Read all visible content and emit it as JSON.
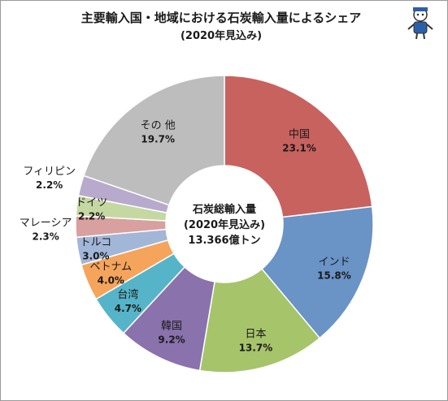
{
  "chart_data": {
    "type": "pie",
    "title": "主要輸入国・地域における石炭輸入量によるシェア",
    "subtitle": "(2020年見込み)",
    "center_label": [
      "石炭総輸入量",
      "(2020年見込み)",
      "13.366億トン"
    ],
    "categories": [
      "中国",
      "インド",
      "日本",
      "韓国",
      "台湾",
      "ベトナム",
      "トルコ",
      "マレーシア",
      "ドイツ",
      "フィリピン",
      "その 他"
    ],
    "values": [
      23.1,
      15.8,
      13.7,
      9.2,
      4.7,
      4.0,
      3.0,
      2.3,
      2.2,
      2.2,
      19.7
    ],
    "value_labels": [
      "23.1%",
      "15.8%",
      "13.7%",
      "9.2%",
      "4.7%",
      "4.0%",
      "3.0%",
      "2.3%",
      "2.2%",
      "2.2%",
      "19.7%"
    ],
    "colors": [
      "#c8625f",
      "#6a93c6",
      "#a6c46a",
      "#8a72ad",
      "#56b4c9",
      "#f5a45c",
      "#a2b6d8",
      "#d9a0a0",
      "#c5d8a2",
      "#b8aacd",
      "#bdbdbd"
    ],
    "donut": true
  }
}
